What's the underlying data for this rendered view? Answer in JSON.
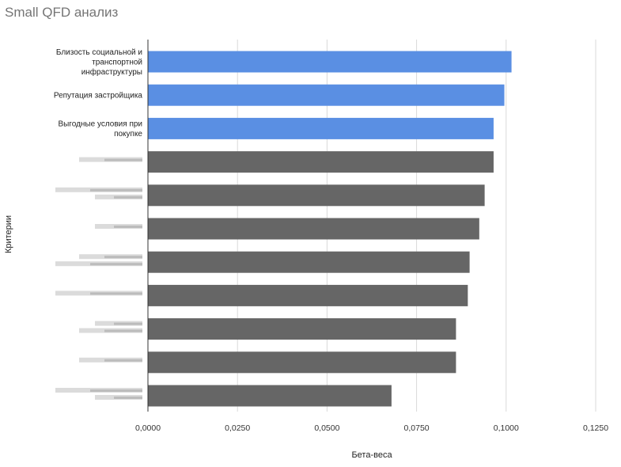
{
  "chart_data": {
    "type": "bar",
    "orientation": "horizontal",
    "title": "Small QFD анализ",
    "xlabel": "Бета-веса",
    "ylabel": "Критерии",
    "xlim": [
      0,
      0.125
    ],
    "xticks": [
      "0,0000",
      "0,0250",
      "0,0500",
      "0,0750",
      "0,1000",
      "0,1250"
    ],
    "grid": true,
    "legend": "none",
    "categories": [
      [
        "Близость социальной и",
        "транспортной",
        "инфраструктуры"
      ],
      [
        "Репутация застройщика"
      ],
      [
        "Выгодные условия при",
        "покупке"
      ],
      [],
      [],
      [],
      [],
      [],
      [],
      [],
      []
    ],
    "values": [
      0.1015,
      0.0995,
      0.0965,
      0.0965,
      0.094,
      0.0925,
      0.0898,
      0.0893,
      0.086,
      0.086,
      0.068
    ],
    "highlighted": [
      true,
      true,
      true,
      false,
      false,
      false,
      false,
      false,
      false,
      false,
      false
    ],
    "blurred_labels": [
      false,
      false,
      false,
      true,
      true,
      true,
      true,
      true,
      true,
      true,
      true
    ],
    "colors": {
      "highlight": "#5a8fe3",
      "default": "#666666",
      "grid": "#d9d9d9",
      "axis": "#333333"
    }
  }
}
